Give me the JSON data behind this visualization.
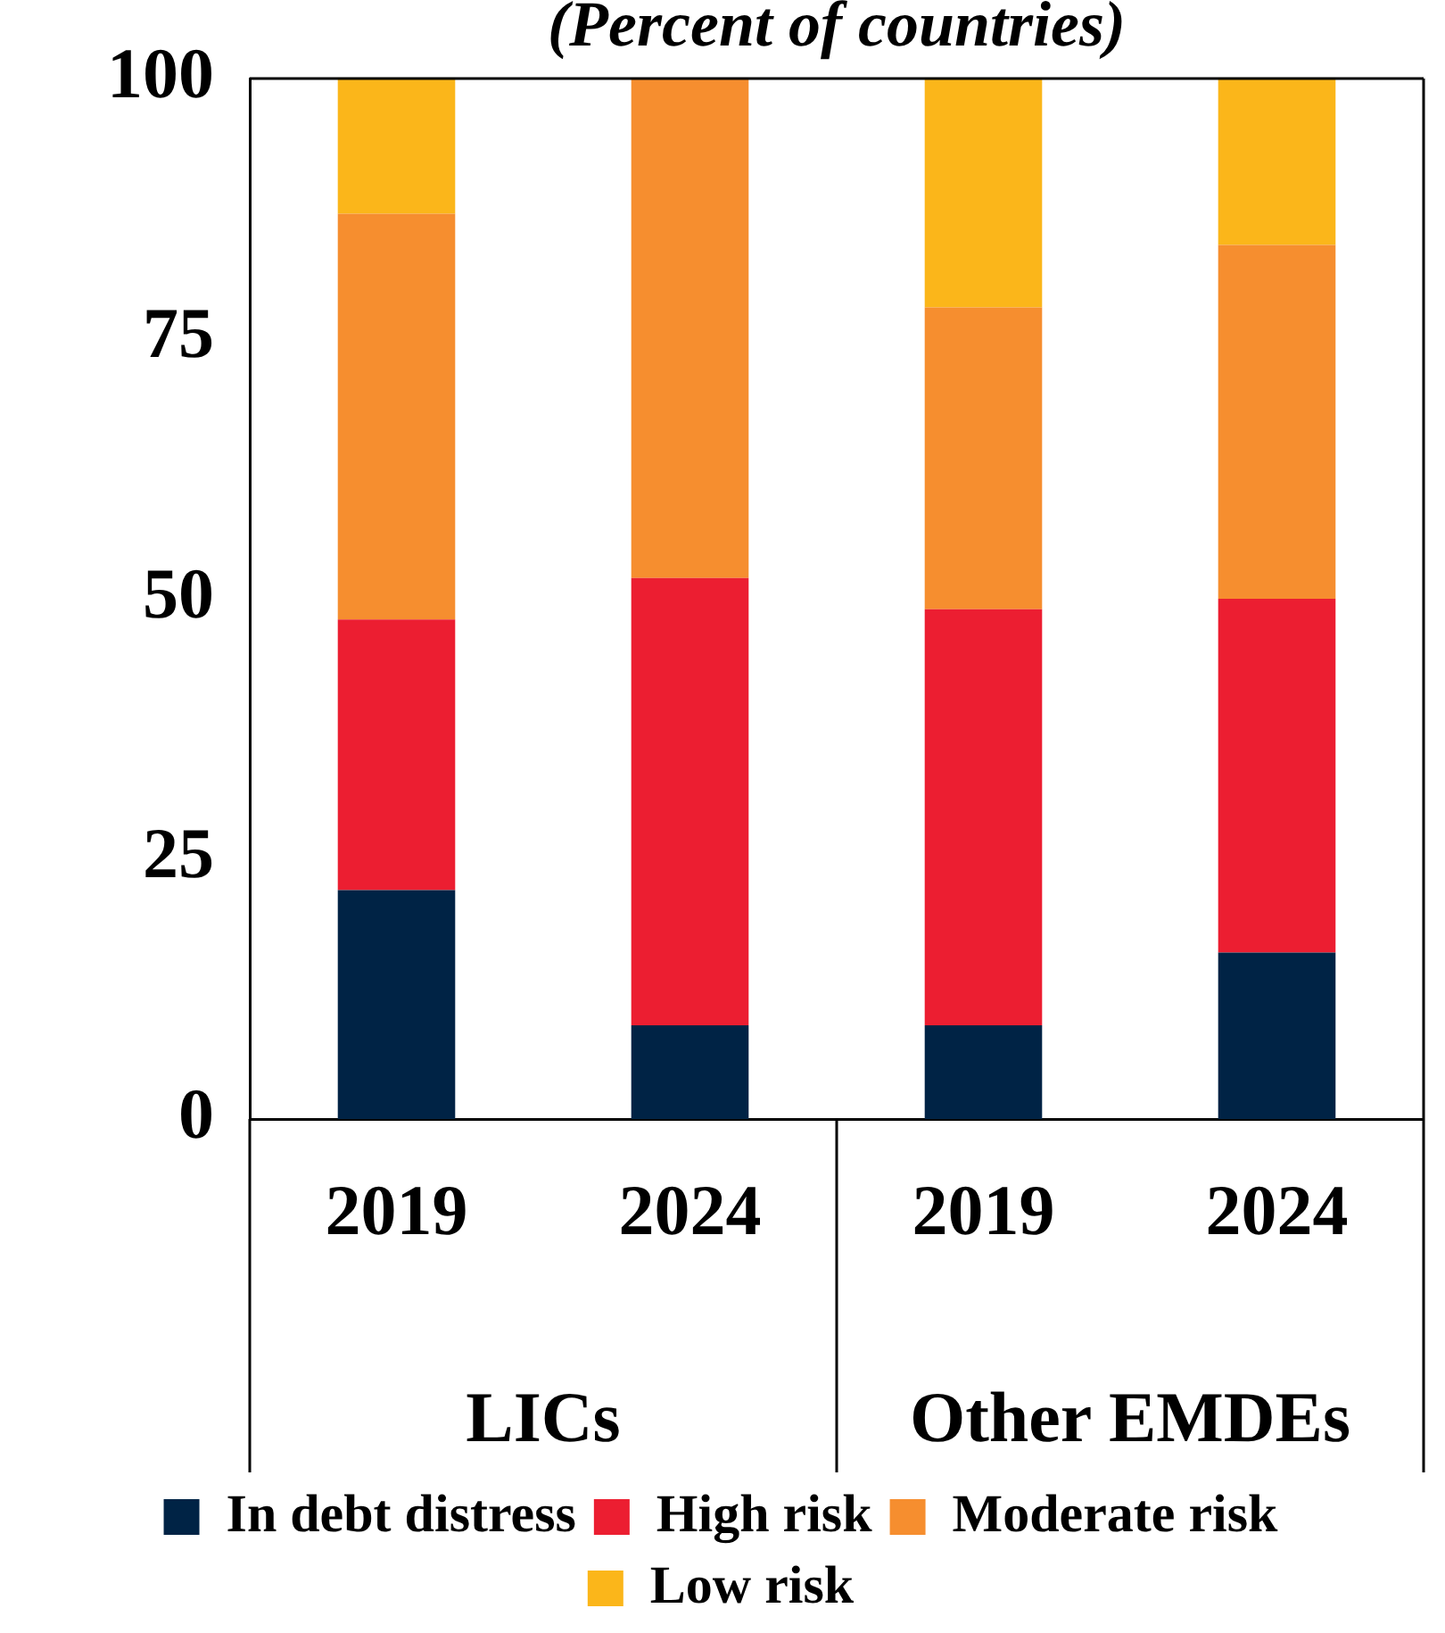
{
  "chart_data": {
    "type": "bar",
    "subtitle": "(Percent of countries)",
    "stacked": true,
    "categories": [
      "2019",
      "2024",
      "2019",
      "2024"
    ],
    "annotations": [
      "LICs",
      "Other EMDEs"
    ],
    "series": [
      {
        "name": "In debt distress",
        "color": "#002345",
        "values": [
          22,
          9,
          9,
          16
        ]
      },
      {
        "name": "High risk",
        "color": "#ec1e31",
        "values": [
          26,
          43,
          40,
          34
        ]
      },
      {
        "name": "Moderate risk",
        "color": "#f68e2f",
        "values": [
          39,
          48,
          29,
          34
        ]
      },
      {
        "name": "Low risk",
        "color": "#fbb61a",
        "values": [
          13,
          0,
          22,
          16
        ]
      }
    ],
    "ylim": [
      0,
      100
    ],
    "yticks": [
      0,
      25,
      50,
      75,
      100
    ],
    "grid": false,
    "legend": "bottom"
  }
}
